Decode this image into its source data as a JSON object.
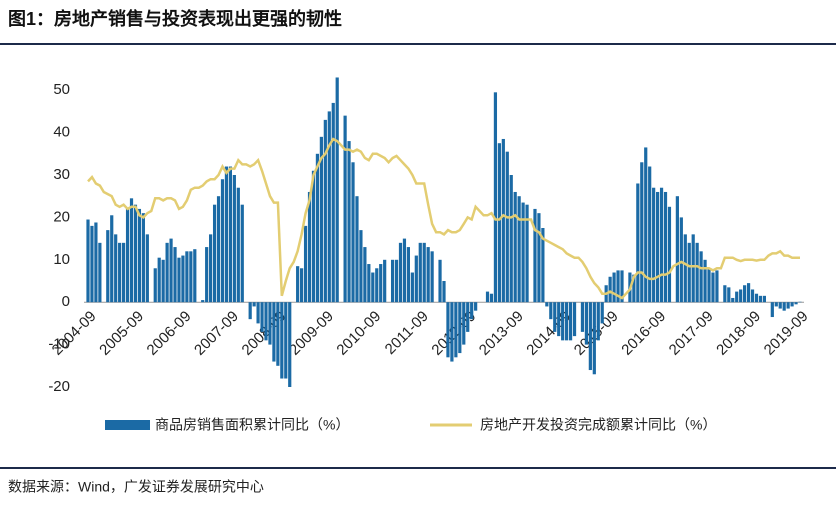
{
  "chart_data": {
    "type": "bar-line",
    "title": "图1：房地产销售与投资表现出更强的韧性",
    "source": "数据来源：Wind，广发证券发展研究中心",
    "categories": [
      "2004-09",
      null,
      null,
      null,
      null,
      null,
      null,
      null,
      null,
      null,
      null,
      null,
      "2005-09",
      null,
      null,
      null,
      null,
      null,
      null,
      null,
      null,
      null,
      null,
      null,
      "2006-09",
      null,
      null,
      null,
      null,
      null,
      null,
      null,
      null,
      null,
      null,
      null,
      "2007-09",
      null,
      null,
      null,
      null,
      null,
      null,
      null,
      null,
      null,
      null,
      null,
      "2008-09",
      null,
      null,
      null,
      null,
      null,
      null,
      null,
      null,
      null,
      null,
      null,
      "2009-09",
      null,
      null,
      null,
      null,
      null,
      null,
      null,
      null,
      null,
      null,
      null,
      "2010-09",
      null,
      null,
      null,
      null,
      null,
      null,
      null,
      null,
      null,
      null,
      null,
      "2011-09",
      null,
      null,
      null,
      null,
      null,
      null,
      null,
      null,
      null,
      null,
      null,
      "2012-09",
      null,
      null,
      null,
      null,
      null,
      null,
      null,
      null,
      null,
      null,
      null,
      "2013-09",
      null,
      null,
      null,
      null,
      null,
      null,
      null,
      null,
      null,
      null,
      null,
      "2014-09",
      null,
      null,
      null,
      null,
      null,
      null,
      null,
      null,
      null,
      null,
      null,
      "2015-09",
      null,
      null,
      null,
      null,
      null,
      null,
      null,
      null,
      null,
      null,
      null,
      "2016-09",
      null,
      null,
      null,
      null,
      null,
      null,
      null,
      null,
      null,
      null,
      null,
      "2017-09",
      null,
      null,
      null,
      null,
      null,
      null,
      null,
      null,
      null,
      null,
      null,
      "2018-09",
      null,
      null,
      null,
      null,
      null,
      null,
      null,
      null,
      null,
      null,
      null,
      "2019-09"
    ],
    "series": [
      {
        "name": "商品房销售面积累计同比（%）",
        "kind": "bar",
        "color": "#1b6aa5",
        "values": [
          19.5,
          18,
          18.8,
          14,
          null,
          17,
          20.5,
          16,
          14,
          14,
          22,
          24.5,
          23,
          22,
          21,
          16,
          null,
          8,
          10.5,
          10,
          14,
          15,
          13,
          10.5,
          11,
          12,
          12,
          12.5,
          null,
          0.5,
          13,
          16,
          23,
          25,
          29,
          32,
          32,
          30,
          27,
          23,
          null,
          -4,
          -1,
          -5,
          -7,
          -9,
          -10,
          -14,
          -15,
          -18,
          -18,
          -20,
          null,
          8.5,
          8,
          18,
          26,
          31,
          35,
          39,
          43,
          45,
          47,
          53,
          null,
          44,
          38,
          33,
          25,
          17,
          13,
          9,
          7,
          8,
          9,
          10,
          null,
          10,
          10,
          14,
          15,
          13,
          7,
          11,
          14,
          14,
          13,
          12,
          null,
          10,
          5,
          -13,
          -14,
          -13,
          -12,
          -10,
          -7,
          -4,
          -2,
          0,
          null,
          2.5,
          2,
          49.5,
          37.5,
          38.5,
          35.5,
          30,
          26,
          25,
          23.5,
          23,
          null,
          22,
          21,
          17.5,
          -1,
          -4,
          -7,
          -8,
          -9,
          -9,
          -9,
          -8,
          null,
          -7,
          -10,
          -16,
          -17,
          -9,
          -5,
          4,
          6,
          7,
          7.5,
          7.5,
          null,
          7,
          6.5,
          28,
          33,
          36.5,
          32,
          27,
          26,
          27,
          26,
          22.5,
          null,
          25,
          20,
          16,
          14,
          16,
          14,
          12,
          10,
          8,
          7,
          7.5,
          null,
          4,
          3.5,
          1,
          2.5,
          3,
          4,
          4.5,
          3,
          2,
          1.5,
          1.5,
          null,
          -3.5,
          -1,
          -1.5,
          -2,
          -1.5,
          -1,
          -0.5,
          0.1
        ]
      },
      {
        "name": "房地产开发投资完成额累计同比（%）",
        "kind": "line",
        "color": "#e3cd72",
        "values": [
          28.5,
          29.5,
          28,
          27.5,
          26,
          25.5,
          25,
          23,
          22.5,
          23,
          22,
          22.5,
          22.5,
          20.5,
          20,
          21,
          21.5,
          24.5,
          24.5,
          24,
          24.5,
          24.5,
          24,
          22,
          22.5,
          24,
          26.5,
          27,
          27,
          27.5,
          28.5,
          29,
          29,
          30,
          32,
          30.5,
          31.5,
          31.5,
          33.5,
          32.5,
          32.5,
          32,
          32.5,
          33.5,
          31,
          28,
          25,
          23.5,
          23.5,
          1.5,
          5,
          8,
          9.5,
          12,
          16,
          21,
          24,
          30,
          32,
          34,
          35,
          37,
          38.5,
          38,
          37,
          36,
          36,
          35.5,
          36,
          35.5,
          34,
          33.5,
          35,
          35,
          34.5,
          34,
          33,
          34,
          34.5,
          33.5,
          32.5,
          31.5,
          30,
          28,
          28,
          28,
          23,
          18.5,
          16.5,
          16.5,
          16,
          17,
          16.5,
          16.5,
          17,
          18.5,
          20,
          19.5,
          22.5,
          21.5,
          20.5,
          20.5,
          21,
          19.5,
          19.5,
          20.5,
          20,
          20,
          20.5,
          19.5,
          19.5,
          19.5,
          19.5,
          17,
          16.5,
          15,
          14.5,
          14,
          13.5,
          13,
          12.5,
          11.5,
          11,
          10.5,
          10.5,
          9.5,
          8,
          6,
          4.5,
          3.5,
          2,
          2,
          2.5,
          2,
          1.5,
          1,
          2,
          3,
          6,
          7,
          7,
          6,
          5.5,
          5.5,
          6,
          6.5,
          6.5,
          7,
          8.5,
          9,
          9.5,
          9,
          8.5,
          8.5,
          8.5,
          8,
          8,
          8,
          7.5,
          8,
          8,
          10.5,
          10.5,
          10.5,
          10,
          9.7,
          10,
          10,
          10,
          9.8,
          10,
          10,
          11,
          11.5,
          11.5,
          12,
          11,
          11,
          10.5,
          10.5,
          10.5
        ]
      }
    ],
    "ylim": [
      -20,
      55
    ],
    "yticks": [
      -20,
      -10,
      0,
      10,
      20,
      30,
      40,
      50
    ]
  }
}
